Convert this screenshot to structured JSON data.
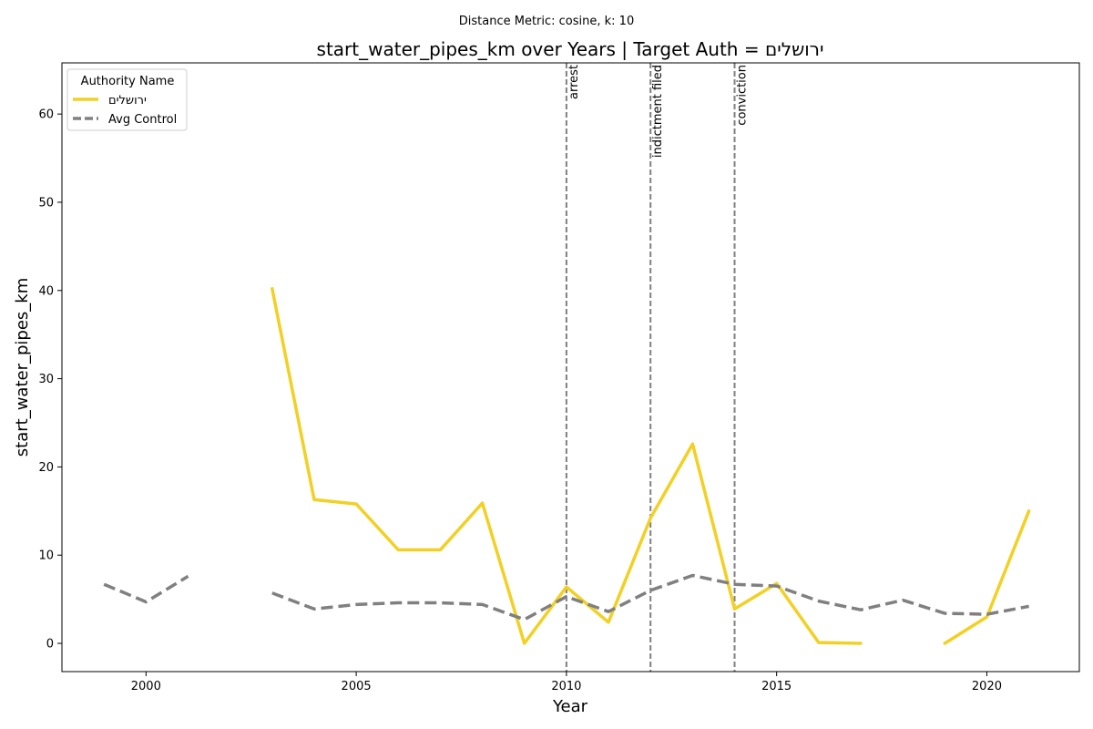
{
  "chart_data": {
    "type": "line",
    "suptitle": "Distance Metric: cosine, k: 10",
    "title": "start_water_pipes_km over Years | Target Auth = ירושלים",
    "xlabel": "Year",
    "ylabel": "start_water_pipes_km",
    "xlim": [
      1998,
      2022.2
    ],
    "ylim": [
      -3.2,
      65.8
    ],
    "xticks": [
      2000,
      2005,
      2010,
      2015,
      2020
    ],
    "yticks": [
      0,
      10,
      20,
      30,
      40,
      50,
      60
    ],
    "grid": false,
    "legend": {
      "title": "Authority Name",
      "placement": "top-left"
    },
    "series": [
      {
        "name": "ירושלים",
        "color": "#f2d024",
        "style": "solid",
        "points": [
          [
            2003,
            40.2
          ],
          [
            2004,
            16.3
          ],
          [
            2005,
            15.8
          ],
          [
            2006,
            10.6
          ],
          [
            2007,
            10.6
          ],
          [
            2008,
            15.9
          ],
          [
            2009,
            0.0
          ],
          [
            2010,
            6.4
          ],
          [
            2011,
            2.4
          ],
          [
            2012,
            14.2
          ],
          [
            2013,
            22.6
          ],
          [
            2014,
            3.9
          ],
          [
            2015,
            6.8
          ],
          [
            2016,
            0.1
          ],
          [
            2017,
            0.0
          ],
          [
            2018,
            null
          ],
          [
            2019,
            0.0
          ],
          [
            2020,
            3.0
          ],
          [
            2021,
            15.0
          ]
        ]
      },
      {
        "name": "Avg Control",
        "color": "#808080",
        "style": "dashed",
        "points": [
          [
            1999,
            6.7
          ],
          [
            2000,
            4.7
          ],
          [
            2001,
            7.6
          ],
          [
            2002,
            null
          ],
          [
            2003,
            5.7
          ],
          [
            2004,
            3.9
          ],
          [
            2005,
            4.4
          ],
          [
            2006,
            4.6
          ],
          [
            2007,
            4.6
          ],
          [
            2008,
            4.4
          ],
          [
            2009,
            2.7
          ],
          [
            2010,
            5.3
          ],
          [
            2011,
            3.6
          ],
          [
            2012,
            6.0
          ],
          [
            2013,
            7.7
          ],
          [
            2014,
            6.7
          ],
          [
            2015,
            6.5
          ],
          [
            2016,
            4.8
          ],
          [
            2017,
            3.8
          ],
          [
            2018,
            4.9
          ],
          [
            2019,
            3.4
          ],
          [
            2020,
            3.3
          ],
          [
            2021,
            4.2
          ]
        ]
      }
    ],
    "events": [
      {
        "x": 2010,
        "label": "arrest"
      },
      {
        "x": 2012,
        "label": "indictment filed"
      },
      {
        "x": 2014,
        "label": "conviction"
      }
    ]
  }
}
